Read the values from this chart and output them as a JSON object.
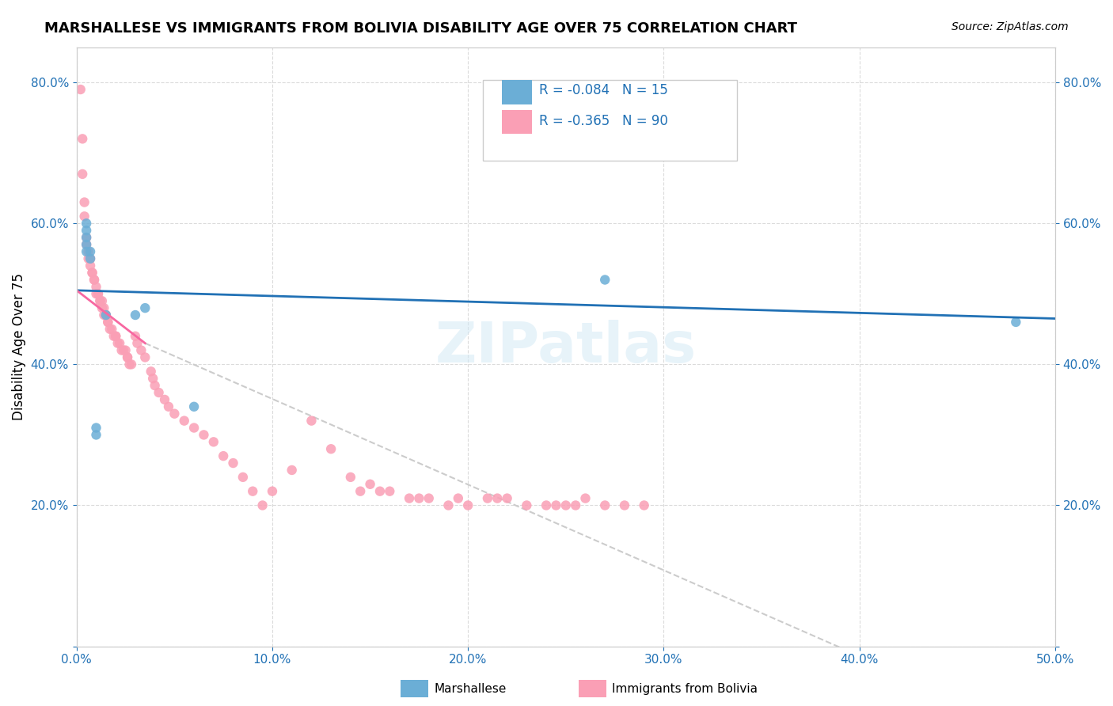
{
  "title": "MARSHALLESE VS IMMIGRANTS FROM BOLIVIA DISABILITY AGE OVER 75 CORRELATION CHART",
  "source": "Source: ZipAtlas.com",
  "xlabel": "",
  "ylabel": "Disability Age Over 75",
  "xlim": [
    0.0,
    0.5
  ],
  "ylim": [
    0.0,
    0.85
  ],
  "xticks": [
    0.0,
    0.1,
    0.2,
    0.3,
    0.4,
    0.5
  ],
  "xticklabels": [
    "0.0%",
    "10.0%",
    "20.0%",
    "30.0%",
    "40.0%",
    "50.0%"
  ],
  "yticks": [
    0.0,
    0.2,
    0.4,
    0.6,
    0.8
  ],
  "yticklabels": [
    "",
    "20.0%",
    "40.0%",
    "60.0%",
    "80.0%"
  ],
  "legend_r_blue": "R = -0.084",
  "legend_n_blue": "N = 15",
  "legend_r_pink": "R = -0.365",
  "legend_n_pink": "N = 90",
  "legend_label_blue": "Marshallese",
  "legend_label_pink": "Immigrants from Bolivia",
  "blue_color": "#6baed6",
  "pink_color": "#fa9fb5",
  "blue_line_color": "#2171b5",
  "pink_line_color": "#f768a1",
  "watermark": "ZIPatlas",
  "marshallese_x": [
    0.005,
    0.005,
    0.005,
    0.005,
    0.005,
    0.007,
    0.007,
    0.01,
    0.01,
    0.015,
    0.03,
    0.035,
    0.06,
    0.48,
    0.27
  ],
  "marshallese_y": [
    0.56,
    0.57,
    0.58,
    0.59,
    0.6,
    0.55,
    0.56,
    0.3,
    0.31,
    0.47,
    0.47,
    0.48,
    0.34,
    0.46,
    0.52
  ],
  "bolivia_x": [
    0.002,
    0.003,
    0.003,
    0.004,
    0.004,
    0.005,
    0.005,
    0.006,
    0.006,
    0.007,
    0.007,
    0.008,
    0.008,
    0.009,
    0.009,
    0.01,
    0.01,
    0.011,
    0.011,
    0.012,
    0.012,
    0.013,
    0.013,
    0.014,
    0.014,
    0.015,
    0.015,
    0.016,
    0.016,
    0.017,
    0.018,
    0.019,
    0.02,
    0.02,
    0.021,
    0.022,
    0.023,
    0.024,
    0.025,
    0.026,
    0.026,
    0.027,
    0.028,
    0.03,
    0.031,
    0.033,
    0.035,
    0.038,
    0.039,
    0.04,
    0.042,
    0.045,
    0.047,
    0.05,
    0.055,
    0.06,
    0.065,
    0.07,
    0.075,
    0.08,
    0.085,
    0.09,
    0.095,
    0.1,
    0.11,
    0.12,
    0.13,
    0.14,
    0.15,
    0.155,
    0.16,
    0.17,
    0.175,
    0.18,
    0.19,
    0.195,
    0.2,
    0.21,
    0.215,
    0.22,
    0.23,
    0.24,
    0.245,
    0.25,
    0.255,
    0.26,
    0.27,
    0.28,
    0.29,
    0.145
  ],
  "bolivia_y": [
    0.79,
    0.72,
    0.67,
    0.63,
    0.61,
    0.58,
    0.57,
    0.56,
    0.55,
    0.55,
    0.54,
    0.53,
    0.53,
    0.52,
    0.52,
    0.51,
    0.5,
    0.5,
    0.5,
    0.49,
    0.49,
    0.49,
    0.48,
    0.48,
    0.47,
    0.47,
    0.47,
    0.46,
    0.46,
    0.45,
    0.45,
    0.44,
    0.44,
    0.44,
    0.43,
    0.43,
    0.42,
    0.42,
    0.42,
    0.41,
    0.41,
    0.4,
    0.4,
    0.44,
    0.43,
    0.42,
    0.41,
    0.39,
    0.38,
    0.37,
    0.36,
    0.35,
    0.34,
    0.33,
    0.32,
    0.31,
    0.3,
    0.29,
    0.27,
    0.26,
    0.24,
    0.22,
    0.2,
    0.22,
    0.25,
    0.32,
    0.28,
    0.24,
    0.23,
    0.22,
    0.22,
    0.21,
    0.21,
    0.21,
    0.2,
    0.21,
    0.2,
    0.21,
    0.21,
    0.21,
    0.2,
    0.2,
    0.2,
    0.2,
    0.2,
    0.21,
    0.2,
    0.2,
    0.2,
    0.22
  ]
}
